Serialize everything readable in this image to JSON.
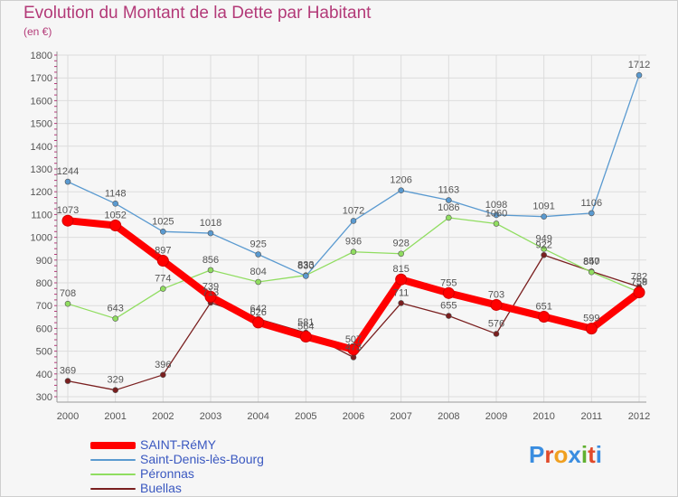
{
  "title": "Evolution du Montant de la Dette par Habitant",
  "subtitle": "(en €)",
  "logo": {
    "text": "ProXiti",
    "letters": [
      "P",
      "r",
      "o",
      "x",
      "i",
      "t",
      "i"
    ],
    "colors": [
      "#3a8de0",
      "#e04a2a",
      "#f0a020",
      "#3a8de0",
      "#60b030",
      "#e04a2a",
      "#3a8de0"
    ]
  },
  "chart_data": {
    "type": "line",
    "x": [
      "2000",
      "2001",
      "2002",
      "2003",
      "2004",
      "2005",
      "2006",
      "2007",
      "2008",
      "2009",
      "2010",
      "2011",
      "2012"
    ],
    "ylim": [
      300,
      1800
    ],
    "yticks": [
      300,
      400,
      500,
      600,
      700,
      800,
      900,
      1000,
      1100,
      1200,
      1300,
      1400,
      1500,
      1600,
      1700,
      1800
    ],
    "grid": true,
    "legend_position": "bottom-left",
    "series": [
      {
        "name": "Buellas",
        "color": "#7a1f1f",
        "values": [
          369,
          329,
          396,
          713,
          642,
          581,
          473,
          711,
          655,
          576,
          922,
          850,
          782
        ]
      },
      {
        "name": "Péronnas",
        "color": "#90dd60",
        "values": [
          708,
          643,
          774,
          856,
          804,
          833,
          936,
          928,
          1086,
          1060,
          949,
          847,
          759
        ]
      },
      {
        "name": "Saint-Denis-lès-Bourg",
        "color": "#5a9ad0",
        "values": [
          1244,
          1148,
          1025,
          1018,
          925,
          830,
          1072,
          1206,
          1163,
          1098,
          1091,
          1106,
          1712
        ]
      },
      {
        "name": "SAINT-RéMY",
        "color": "#ff0000",
        "values": [
          1073,
          1052,
          897,
          739,
          626,
          564,
          507,
          815,
          755,
          703,
          651,
          599,
          758
        ]
      }
    ]
  }
}
